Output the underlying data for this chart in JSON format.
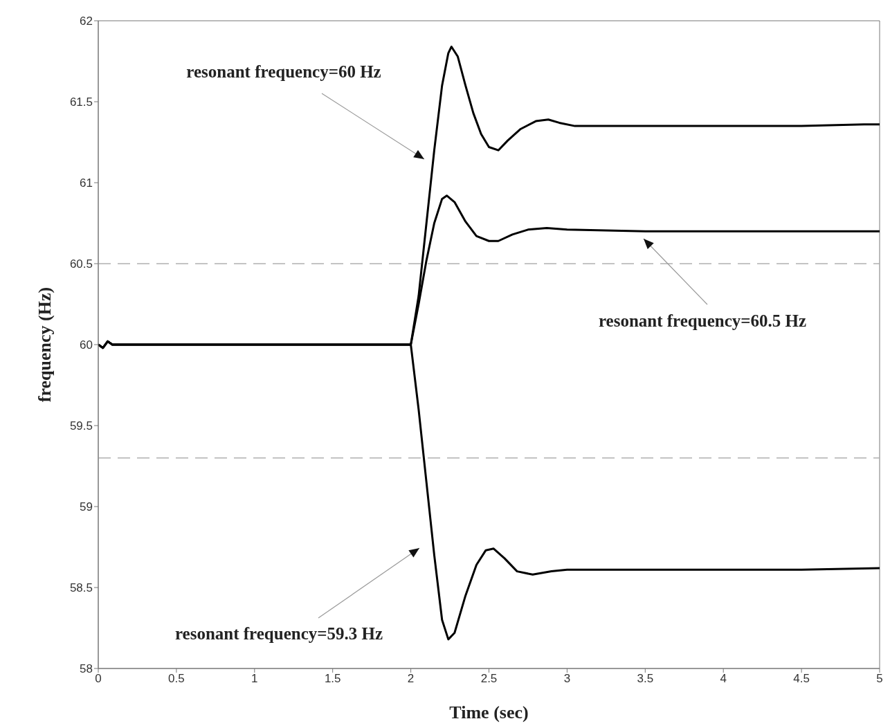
{
  "chart_data": {
    "type": "line",
    "xlabel": "Time (sec)",
    "ylabel": "frequency (Hz)",
    "xlim": [
      0,
      5
    ],
    "xticks": [
      0,
      0.5,
      1,
      1.5,
      2,
      2.5,
      3,
      3.5,
      4,
      4.5,
      5
    ],
    "ylim": [
      58,
      62
    ],
    "yticks": [
      58,
      58.5,
      59,
      59.5,
      60,
      60.5,
      61,
      61.5,
      62
    ],
    "series": [
      {
        "color": "#000000",
        "x": [
          0,
          0.03,
          0.06,
          0.09,
          0.5,
          1,
          1.5,
          2,
          2.05,
          2.1,
          2.15,
          2.2,
          2.24,
          2.26,
          2.3,
          2.35,
          2.4,
          2.45,
          2.5,
          2.56,
          2.62,
          2.7,
          2.8,
          2.88,
          2.95,
          3.05,
          3.5,
          4,
          4.5,
          4.9,
          5
        ],
        "values": [
          60,
          59.98,
          60.02,
          60,
          60,
          60,
          60,
          60,
          60.3,
          60.75,
          61.2,
          61.6,
          61.8,
          61.84,
          61.78,
          61.6,
          61.43,
          61.3,
          61.22,
          61.2,
          61.26,
          61.33,
          61.38,
          61.39,
          61.37,
          61.35,
          61.35,
          61.35,
          61.35,
          61.36,
          61.36
        ]
      },
      {
        "color": "#000000",
        "x": [
          0,
          0.03,
          0.06,
          0.09,
          0.5,
          1,
          1.5,
          2,
          2.05,
          2.1,
          2.15,
          2.2,
          2.23,
          2.28,
          2.35,
          2.42,
          2.5,
          2.56,
          2.65,
          2.75,
          2.87,
          3,
          3.5,
          4,
          4.5,
          5
        ],
        "values": [
          60,
          59.98,
          60.02,
          60,
          60,
          60,
          60,
          60,
          60.25,
          60.52,
          60.75,
          60.9,
          60.92,
          60.88,
          60.76,
          60.67,
          60.64,
          60.64,
          60.68,
          60.71,
          60.72,
          60.71,
          60.7,
          60.7,
          60.7,
          60.7
        ]
      },
      {
        "color": "#000000",
        "x": [
          0,
          0.03,
          0.06,
          0.09,
          0.5,
          1,
          1.5,
          2,
          2.05,
          2.1,
          2.15,
          2.2,
          2.24,
          2.28,
          2.35,
          2.42,
          2.48,
          2.53,
          2.6,
          2.68,
          2.78,
          2.9,
          3,
          3.5,
          4,
          4.5,
          5
        ],
        "values": [
          60,
          59.98,
          60.02,
          60,
          60,
          60,
          60,
          60,
          59.6,
          59.15,
          58.7,
          58.3,
          58.18,
          58.22,
          58.45,
          58.64,
          58.73,
          58.74,
          58.68,
          58.6,
          58.58,
          58.6,
          58.61,
          58.61,
          58.61,
          58.61,
          58.62
        ]
      }
    ],
    "ref_lines": [
      {
        "axis": "y",
        "value": 60.5,
        "color": "#b0b0b0",
        "line_style": "dashed"
      },
      {
        "axis": "y",
        "value": 59.3,
        "color": "#b0b0b0",
        "line_style": "dashed"
      }
    ],
    "annotations": [
      "resonant frequency=60 Hz",
      "resonant frequency=60.5 Hz",
      "resonant frequency=59.3 Hz"
    ],
    "line_style": "solid"
  }
}
